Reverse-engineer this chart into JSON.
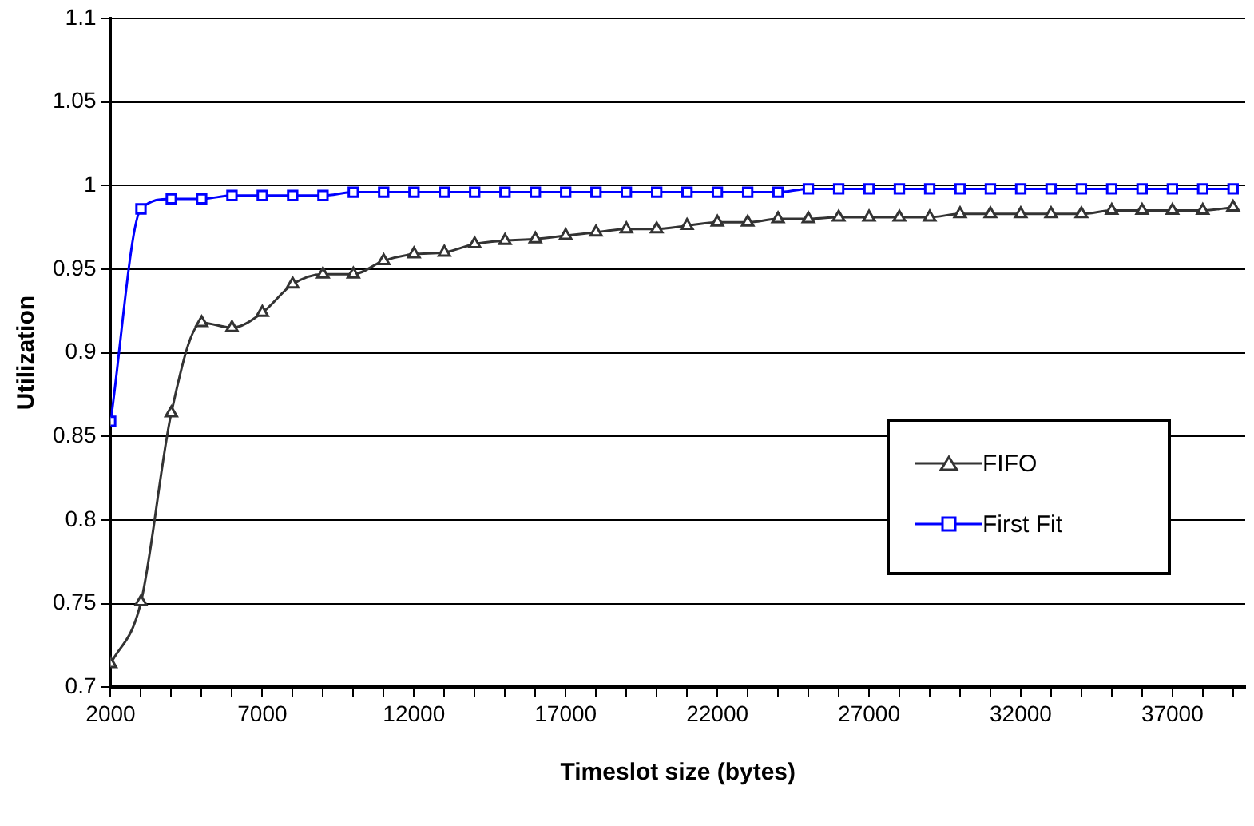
{
  "chart_data": {
    "type": "line",
    "xlabel": "Timeslot size (bytes)",
    "ylabel": "Utilization",
    "x": [
      2000,
      3000,
      4000,
      5000,
      6000,
      7000,
      8000,
      9000,
      10000,
      11000,
      12000,
      13000,
      14000,
      15000,
      16000,
      17000,
      18000,
      19000,
      20000,
      21000,
      22000,
      23000,
      24000,
      25000,
      26000,
      27000,
      28000,
      29000,
      30000,
      31000,
      32000,
      33000,
      34000,
      35000,
      36000,
      37000,
      38000,
      39000
    ],
    "series": [
      {
        "name": "FIFO",
        "color": "#333333",
        "marker": "triangle",
        "values": [
          0.714,
          0.751,
          0.864,
          0.918,
          0.915,
          0.924,
          0.941,
          0.947,
          0.947,
          0.955,
          0.959,
          0.96,
          0.965,
          0.967,
          0.968,
          0.97,
          0.972,
          0.974,
          0.974,
          0.976,
          0.978,
          0.978,
          0.98,
          0.98,
          0.981,
          0.981,
          0.981,
          0.981,
          0.983,
          0.983,
          0.983,
          0.983,
          0.983,
          0.985,
          0.985,
          0.985,
          0.985,
          0.987
        ]
      },
      {
        "name": "First Fit",
        "color": "#0000ff",
        "marker": "square",
        "values": [
          0.859,
          0.986,
          0.992,
          0.992,
          0.994,
          0.994,
          0.994,
          0.994,
          0.996,
          0.996,
          0.996,
          0.996,
          0.996,
          0.996,
          0.996,
          0.996,
          0.996,
          0.996,
          0.996,
          0.996,
          0.996,
          0.996,
          0.996,
          0.998,
          0.998,
          0.998,
          0.998,
          0.998,
          0.998,
          0.998,
          0.998,
          0.998,
          0.998,
          0.998,
          0.998,
          0.998,
          0.998,
          0.998
        ]
      }
    ],
    "xlim": [
      2000,
      39400
    ],
    "xticks": [
      2000,
      {
        "value": 3000,
        "label": null
      },
      {
        "value": 4000,
        "label": null
      },
      {
        "value": 5000,
        "label": null
      },
      {
        "value": 6000,
        "label": null
      },
      7000,
      {
        "value": 8000,
        "label": null
      },
      {
        "value": 9000,
        "label": null
      },
      {
        "value": 10000,
        "label": null
      },
      {
        "value": 11000,
        "label": null
      },
      12000,
      {
        "value": 13000,
        "label": null
      },
      {
        "value": 14000,
        "label": null
      },
      {
        "value": 15000,
        "label": null
      },
      {
        "value": 16000,
        "label": null
      },
      17000,
      {
        "value": 18000,
        "label": null
      },
      {
        "value": 19000,
        "label": null
      },
      {
        "value": 20000,
        "label": null
      },
      {
        "value": 21000,
        "label": null
      },
      22000,
      {
        "value": 23000,
        "label": null
      },
      {
        "value": 24000,
        "label": null
      },
      {
        "value": 25000,
        "label": null
      },
      {
        "value": 26000,
        "label": null
      },
      27000,
      {
        "value": 28000,
        "label": null
      },
      {
        "value": 29000,
        "label": null
      },
      {
        "value": 30000,
        "label": null
      },
      {
        "value": 31000,
        "label": null
      },
      32000,
      {
        "value": 33000,
        "label": null
      },
      {
        "value": 34000,
        "label": null
      },
      {
        "value": 35000,
        "label": null
      },
      {
        "value": 36000,
        "label": null
      },
      37000,
      {
        "value": 38000,
        "label": null
      },
      {
        "value": 39000,
        "label": null
      }
    ],
    "ylim": [
      0.7,
      1.1
    ],
    "yticks": [
      0.7,
      0.75,
      0.8,
      0.85,
      0.9,
      0.95,
      1,
      1.05,
      1.1
    ],
    "grid": "y",
    "legend": "right"
  }
}
